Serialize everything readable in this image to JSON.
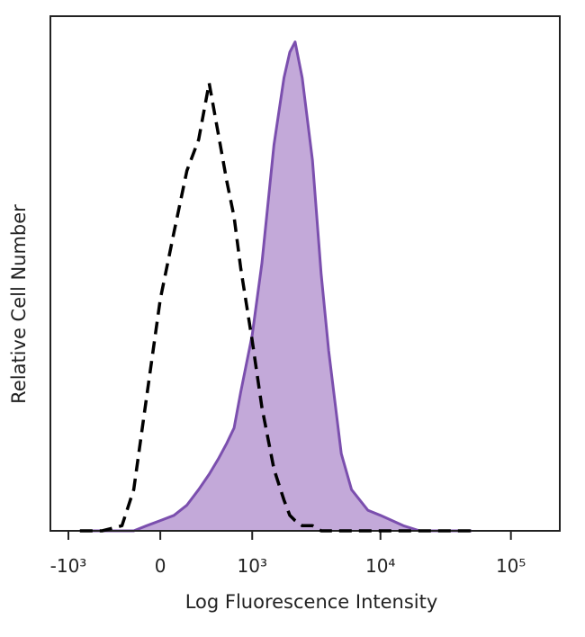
{
  "chart_data": {
    "type": "histogram",
    "x_label": "Log Fluorescence Intensity",
    "y_label": "Relative Cell Number",
    "x_scale": "biexponential",
    "xlim": [
      -1400,
      237000
    ],
    "ylim": [
      0,
      100
    ],
    "xticks": [
      {
        "value": -1000,
        "label": "-10³"
      },
      0,
      {
        "value": 1000,
        "label": "10³"
      },
      {
        "value": 10000,
        "label": "10⁴"
      },
      {
        "value": 100000,
        "label": "10⁵"
      }
    ],
    "x": [
      -800,
      -500,
      -300,
      -200,
      -100,
      0,
      100,
      200,
      300,
      400,
      500,
      600,
      700,
      800,
      1000,
      1200,
      1500,
      1800,
      2000,
      2200,
      2500,
      3000,
      3500,
      4000,
      5000,
      6000,
      8000,
      10000,
      15000,
      20000,
      50000
    ],
    "series": [
      {
        "color": "#000000",
        "style": "dashed",
        "filled": false,
        "values": [
          0,
          0,
          1,
          8,
          26,
          45,
          58,
          70,
          76,
          87,
          77,
          68,
          61,
          51,
          37,
          24,
          12,
          6,
          3,
          2,
          1,
          1,
          0,
          0,
          0,
          0,
          0,
          0,
          0,
          0,
          0
        ]
      },
      {
        "color": "#7b4fae",
        "fill_color": "#c3a9d9",
        "style": "solid",
        "filled": true,
        "values": [
          0,
          0,
          0,
          0,
          1,
          2,
          3,
          5,
          8,
          11,
          14,
          17,
          20,
          27,
          38,
          52,
          75,
          88,
          93,
          95,
          88,
          72,
          50,
          35,
          15,
          8,
          4,
          3,
          1,
          0,
          0
        ]
      }
    ]
  }
}
